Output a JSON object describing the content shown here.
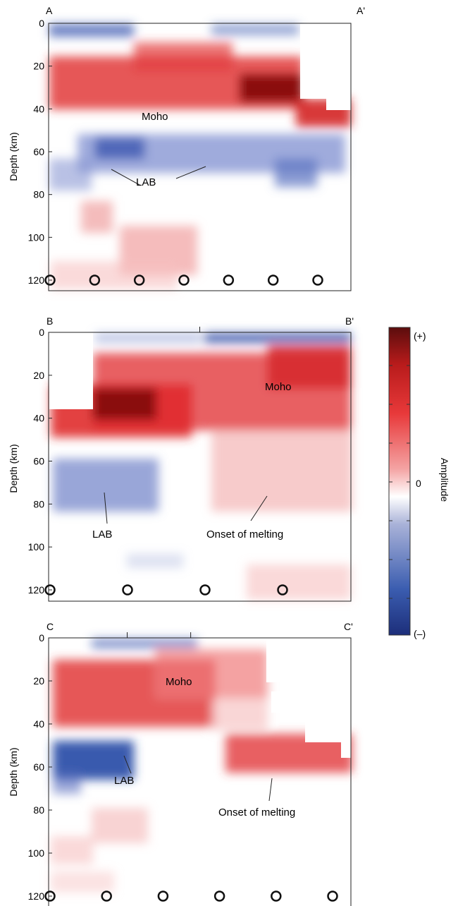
{
  "chart_data": [
    {
      "type": "heatmap",
      "start_label": "A",
      "end_label": "A'",
      "ylabel": "Depth (km)",
      "ylim": [
        0,
        125
      ],
      "yticks": [
        0,
        20,
        40,
        60,
        80,
        100,
        120
      ],
      "top_ticks": [],
      "stations": 7,
      "annotations": [
        {
          "text": "Moho",
          "depth": 44
        },
        {
          "text": "LAB",
          "depth": 74
        }
      ],
      "features": {
        "moho_positive_depth_km": [
          20,
          45
        ],
        "lab_negative_depth_km": [
          55,
          80
        ],
        "upper_negative_depth_km": [
          0,
          8
        ]
      }
    },
    {
      "type": "heatmap",
      "start_label": "B",
      "end_label": "B'",
      "ylabel": "Depth (km)",
      "ylim": [
        0,
        125
      ],
      "yticks": [
        0,
        20,
        40,
        60,
        80,
        100,
        120
      ],
      "top_ticks": [
        0.5
      ],
      "stations": 4,
      "annotations": [
        {
          "text": "Moho",
          "depth": 26
        },
        {
          "text": "LAB",
          "depth": 92
        },
        {
          "text": "Onset of melting",
          "depth": 92
        }
      ],
      "features": {
        "moho_positive_depth_km": [
          15,
          45
        ],
        "lab_negative_depth_km": [
          60,
          80
        ],
        "melting_positive_depth_km": [
          50,
          75
        ]
      }
    },
    {
      "type": "heatmap",
      "start_label": "C",
      "end_label": "C'",
      "ylabel": "Depth (km)",
      "ylim": [
        0,
        125
      ],
      "yticks": [
        0,
        20,
        40,
        60,
        80,
        100,
        120
      ],
      "top_ticks": [
        0.26,
        0.47
      ],
      "stations": 6,
      "annotations": [
        {
          "text": "Moho",
          "depth": 20
        },
        {
          "text": "LAB",
          "depth": 75
        },
        {
          "text": "Onset of melting",
          "depth": 80
        }
      ],
      "features": {
        "moho_positive_depth_km": [
          15,
          45
        ],
        "lab_negative_depth_km": [
          50,
          75
        ],
        "melting_positive_depth_km": [
          50,
          75
        ]
      }
    }
  ],
  "colorbar": {
    "label": "Amplitude",
    "top_label": "(+)",
    "zero_label": "0",
    "bottom_label": "(–)",
    "colors": [
      "#5b0d0d",
      "#b81b1b",
      "#e8393a",
      "#f4a3a3",
      "#ffffff",
      "#a9b2d8",
      "#3b5db0",
      "#1c2e7a"
    ]
  }
}
